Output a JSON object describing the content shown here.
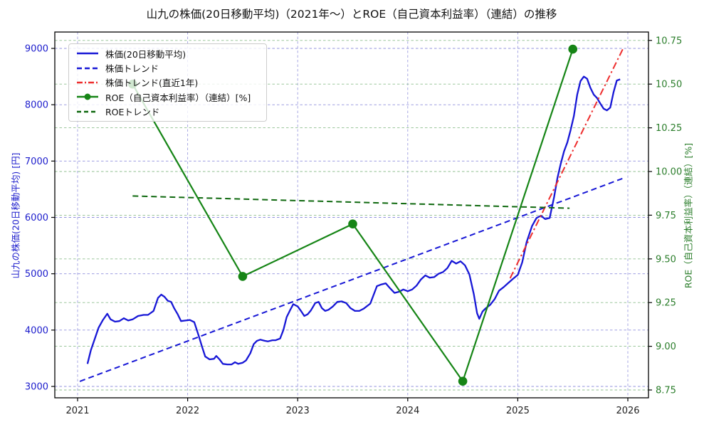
{
  "title": "山九の株価(20日移動平均)（2021年〜）とROE（自己資本利益率）（連結）の推移",
  "axes": {
    "x": {
      "ticks": [
        2021,
        2022,
        2023,
        2024,
        2025,
        2026
      ],
      "tick_color": "#222222"
    },
    "y_left": {
      "label": "山九の株価(20日移動平均) [円]",
      "color": "#1c1ccc",
      "ticks": [
        3000,
        4000,
        5000,
        6000,
        7000,
        8000,
        9000
      ]
    },
    "y_right": {
      "label": "ROE（自己資本利益率）（連結）[%]",
      "color": "#2a7d2a",
      "ticks": [
        "8.75",
        "9.00",
        "9.25",
        "9.50",
        "9.75",
        "10.00",
        "10.25",
        "10.50",
        "10.75"
      ]
    }
  },
  "colors": {
    "price": "#1717d6",
    "price_trend": "#1717d6",
    "price_trend_recent": "#ee2d2d",
    "roe": "#168516",
    "roe_trend": "#0e680e",
    "grid_blue": "#9090dd",
    "grid_green": "#8fbf8f",
    "grid_vertical": "#9f9fe0",
    "border": "#000000"
  },
  "legend": {
    "items": [
      {
        "label": "株価(20日移動平均)",
        "color": "#1717d6",
        "dash": "",
        "marker": false
      },
      {
        "label": "株価トレンド",
        "color": "#1717d6",
        "dash": "7,4",
        "marker": false
      },
      {
        "label": "株価トレンド(直近1年)",
        "color": "#ee2d2d",
        "dash": "8,3,2,3",
        "marker": false
      },
      {
        "label": "ROE（自己資本利益率）（連結）[%]",
        "color": "#168516",
        "dash": "",
        "marker": true
      },
      {
        "label": "ROEトレンド",
        "color": "#0e680e",
        "dash": "6,4",
        "marker": false
      }
    ]
  },
  "chart_data": {
    "type": "line",
    "title": "山九の株価(20日移動平均)（2021年〜）とROE（自己資本利益率）（連結）の推移",
    "xlabel": "",
    "ylabel_left": "山九の株価(20日移動平均) [円]",
    "ylabel_right": "ROE（自己資本利益率）（連結）[%]",
    "xlim": [
      2020.79,
      2026.19
    ],
    "ylim_left": [
      2800,
      9290
    ],
    "ylim_right": [
      8.7,
      10.8
    ],
    "grid": true,
    "legend_position": "upper left",
    "series": [
      {
        "name": "株価(20日移動平均)",
        "axis": "left",
        "style": "solid",
        "width": 2.3,
        "color": "#1717d6",
        "x": [
          2021.09,
          2021.12,
          2021.15,
          2021.19,
          2021.23,
          2021.27,
          2021.3,
          2021.34,
          2021.38,
          2021.42,
          2021.46,
          2021.5,
          2021.55,
          2021.6,
          2021.64,
          2021.69,
          2021.73,
          2021.76,
          2021.79,
          2021.82,
          2021.85,
          2021.88,
          2021.91,
          2021.94,
          2021.98,
          2022.02,
          2022.06,
          2022.1,
          2022.13,
          2022.16,
          2022.2,
          2022.24,
          2022.26,
          2022.29,
          2022.32,
          2022.36,
          2022.4,
          2022.43,
          2022.46,
          2022.5,
          2022.53,
          2022.57,
          2022.6,
          2022.63,
          2022.66,
          2022.7,
          2022.73,
          2022.77,
          2022.8,
          2022.84,
          2022.87,
          2022.9,
          2022.93,
          2022.96,
          2023.0,
          2023.03,
          2023.06,
          2023.09,
          2023.12,
          2023.16,
          2023.19,
          2023.22,
          2023.25,
          2023.28,
          2023.32,
          2023.36,
          2023.4,
          2023.44,
          2023.48,
          2023.52,
          2023.56,
          2023.6,
          2023.66,
          2023.72,
          2023.76,
          2023.8,
          2023.84,
          2023.88,
          2023.92,
          2023.96,
          2024.0,
          2024.04,
          2024.08,
          2024.12,
          2024.16,
          2024.2,
          2024.24,
          2024.28,
          2024.32,
          2024.36,
          2024.4,
          2024.44,
          2024.48,
          2024.52,
          2024.56,
          2024.6,
          2024.63,
          2024.65,
          2024.68,
          2024.71,
          2024.75,
          2024.79,
          2024.83,
          2024.87,
          2024.91,
          2024.95,
          2025.0,
          2025.04,
          2025.08,
          2025.13,
          2025.17,
          2025.21,
          2025.25,
          2025.29,
          2025.33,
          2025.36,
          2025.39,
          2025.42,
          2025.45,
          2025.48,
          2025.51,
          2025.54,
          2025.57,
          2025.6,
          2025.63,
          2025.66,
          2025.69,
          2025.72,
          2025.75,
          2025.78,
          2025.81,
          2025.84,
          2025.87,
          2025.9,
          2025.93
        ],
        "y": [
          3400,
          3640,
          3810,
          4040,
          4180,
          4290,
          4190,
          4150,
          4160,
          4210,
          4170,
          4190,
          4250,
          4270,
          4270,
          4340,
          4570,
          4630,
          4590,
          4520,
          4500,
          4380,
          4280,
          4160,
          4170,
          4180,
          4140,
          3900,
          3710,
          3530,
          3480,
          3490,
          3540,
          3480,
          3400,
          3390,
          3390,
          3430,
          3400,
          3420,
          3460,
          3590,
          3750,
          3810,
          3830,
          3810,
          3800,
          3820,
          3820,
          3850,
          4000,
          4230,
          4350,
          4460,
          4420,
          4340,
          4250,
          4280,
          4350,
          4480,
          4500,
          4390,
          4340,
          4360,
          4420,
          4500,
          4510,
          4480,
          4390,
          4340,
          4340,
          4380,
          4470,
          4780,
          4810,
          4830,
          4740,
          4660,
          4680,
          4720,
          4690,
          4720,
          4790,
          4900,
          4970,
          4930,
          4940,
          5000,
          5030,
          5100,
          5230,
          5180,
          5220,
          5150,
          4990,
          4640,
          4300,
          4200,
          4330,
          4390,
          4450,
          4550,
          4700,
          4760,
          4830,
          4900,
          4980,
          5200,
          5560,
          5850,
          5990,
          6030,
          5970,
          5990,
          6360,
          6700,
          6950,
          7170,
          7330,
          7550,
          7800,
          8180,
          8420,
          8500,
          8460,
          8300,
          8180,
          8120,
          8020,
          7930,
          7900,
          7950,
          8220,
          8430,
          8450
        ]
      },
      {
        "name": "株価トレンド",
        "axis": "left",
        "style": "dashed",
        "width": 2.0,
        "color": "#1717d6",
        "x": [
          2021.02,
          2025.95
        ],
        "y": [
          3090,
          6690
        ]
      },
      {
        "name": "株価トレンド(直近1年)",
        "axis": "left",
        "style": "dashdot",
        "width": 2.0,
        "color": "#ee2d2d",
        "x": [
          2024.93,
          2025.96
        ],
        "y": [
          4920,
          9010
        ]
      },
      {
        "name": "ROE（自己資本利益率）（連結）[%]",
        "axis": "right",
        "style": "solid-marker",
        "width": 2.2,
        "color": "#168516",
        "x": [
          2021.5,
          2022.5,
          2023.5,
          2024.5,
          2025.5
        ],
        "y": [
          10.5,
          9.4,
          9.7,
          8.8,
          10.7
        ]
      },
      {
        "name": "ROEトレンド",
        "axis": "right",
        "style": "dashed",
        "width": 2.0,
        "color": "#0e680e",
        "x": [
          2021.5,
          2025.47
        ],
        "y": [
          9.86,
          9.79
        ]
      }
    ]
  }
}
